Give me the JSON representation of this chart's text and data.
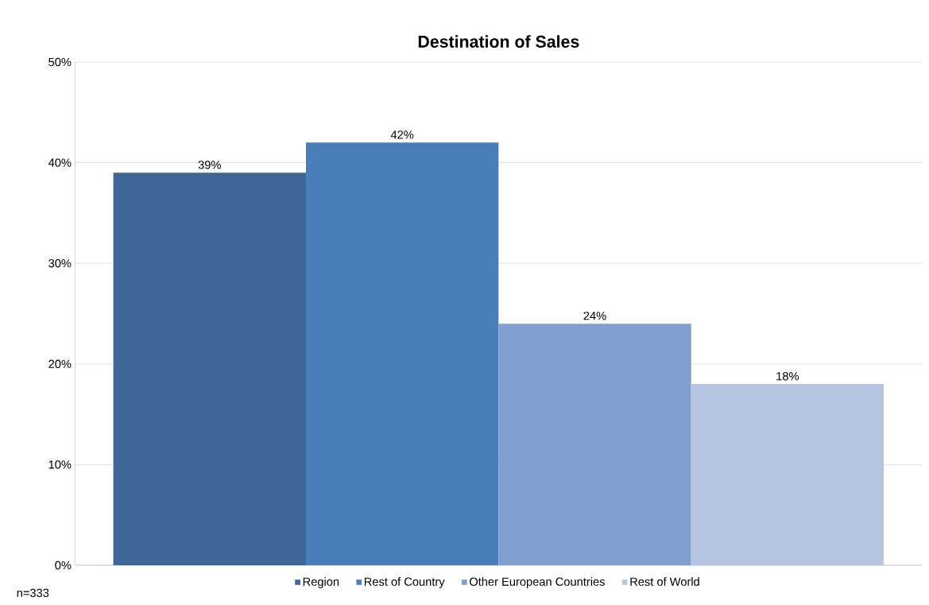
{
  "chart_data": {
    "type": "bar",
    "title": "Destination of Sales",
    "categories": [
      null
    ],
    "series": [
      {
        "name": "Region",
        "color": "#3c6797",
        "values": [
          39
        ],
        "value_labels": [
          "39%"
        ]
      },
      {
        "name": "Rest of Country",
        "color": "#4a7ebb",
        "values": [
          42
        ],
        "value_labels": [
          "42%"
        ]
      },
      {
        "name": "Other European Countries",
        "color": "#7f9fcf",
        "values": [
          24
        ],
        "value_labels": [
          "24%"
        ]
      },
      {
        "name": "Rest of World",
        "color": "#b6c6e2",
        "values": [
          18
        ],
        "value_labels": [
          "18%"
        ]
      }
    ],
    "ylim": [
      0,
      50
    ],
    "yticks": [
      {
        "value": 0,
        "label": "0%"
      },
      {
        "value": 10,
        "label": "10%"
      },
      {
        "value": 20,
        "label": "20%"
      },
      {
        "value": 30,
        "label": "30%"
      },
      {
        "value": 40,
        "label": "40%"
      },
      {
        "value": 50,
        "label": "50%"
      }
    ],
    "grid": "y",
    "legend": "bottom",
    "annotations": [
      "n=333"
    ]
  }
}
